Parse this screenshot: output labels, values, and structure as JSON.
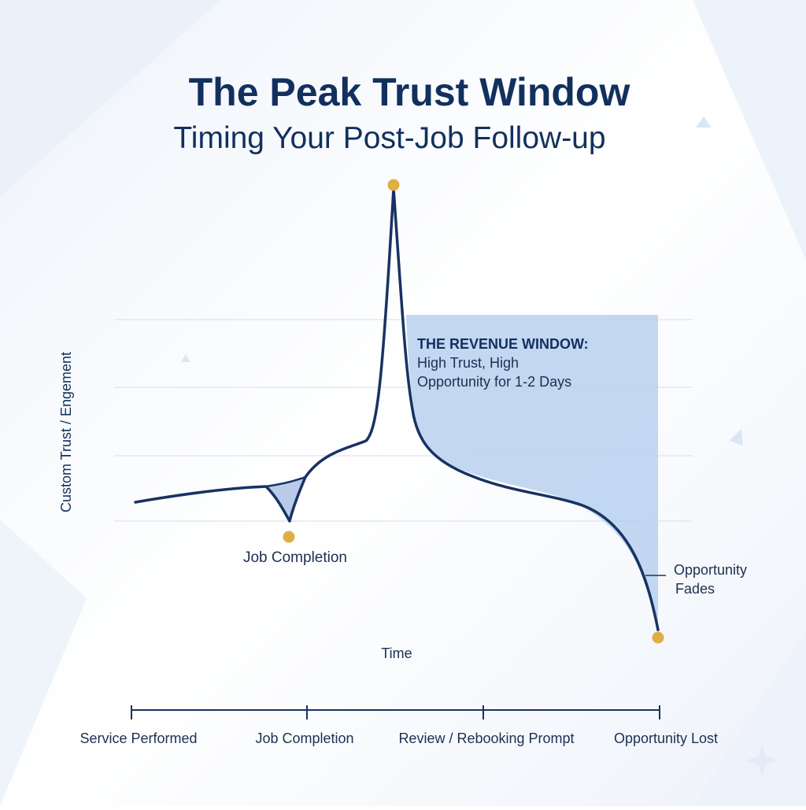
{
  "header": {
    "title": "The Peak Trust Window",
    "subtitle": "Timing Your Post-Job Follow-up"
  },
  "axes": {
    "ylabel": "Custom Trust / Engement",
    "xlabel": "Time"
  },
  "annotations": {
    "job_completion": "Job Completion",
    "window_title": "THE REVENUE WINDOW:",
    "window_line1": "High Trust, High",
    "window_line2": "Opportunity for 1-2 Days",
    "fades_line1": "Opportunity",
    "fades_line2": "Fades"
  },
  "timeline": {
    "stages": [
      "Service Performed",
      "Job Completion",
      "Review / Rebooking Prompt",
      "Opportunity Lost"
    ]
  },
  "colors": {
    "navy": "#12305e",
    "curve": "#183263",
    "marker": "#dfae45",
    "window_fill": "#b9d0ee",
    "grid": "#e3e8f0"
  }
}
